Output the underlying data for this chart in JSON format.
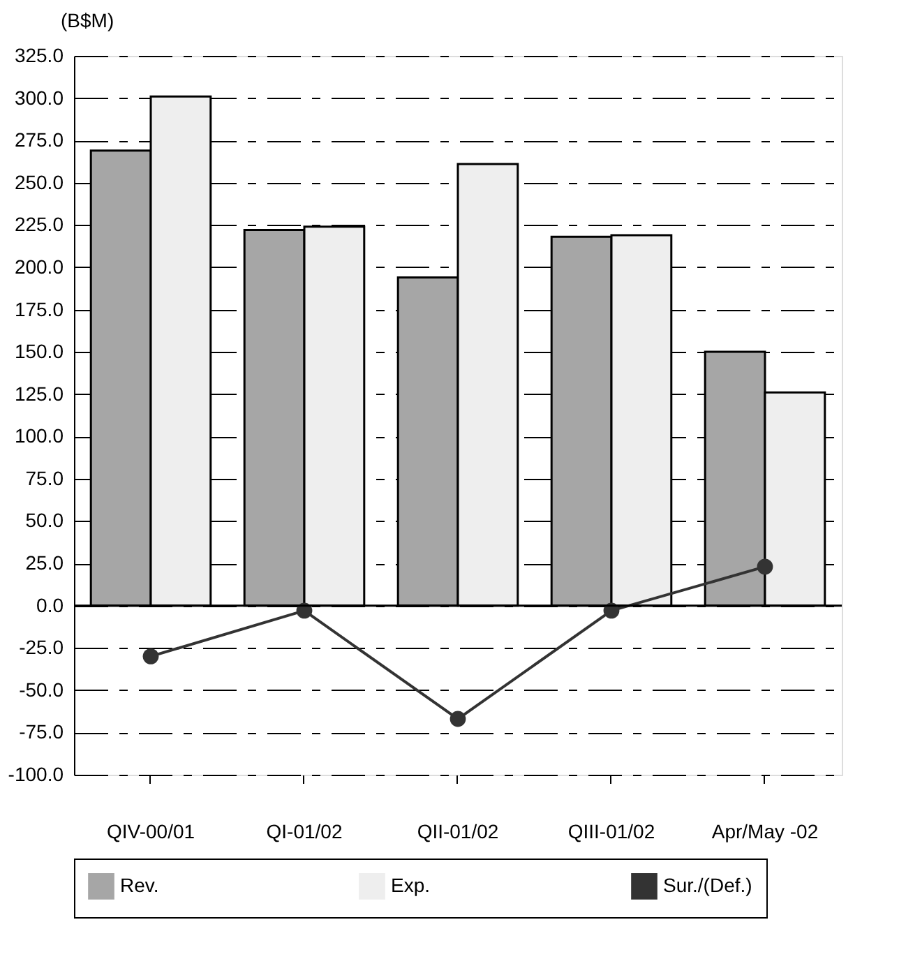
{
  "chart_data": {
    "type": "bar",
    "ylabel": "(B$M)",
    "categories": [
      "QIV-00/01",
      "QI-01/02",
      "QII-01/02",
      "QIII-01/02",
      "Apr/May -02"
    ],
    "series": [
      {
        "name": "Rev.",
        "color": "#a6a6a6",
        "values": [
          269,
          222,
          194,
          218,
          150
        ]
      },
      {
        "name": "Exp.",
        "color": "#eeeeee",
        "values": [
          301,
          224,
          261,
          219,
          126
        ]
      },
      {
        "name": "Sur./(Def.)",
        "type": "line",
        "color": "#333333",
        "marker": "circle",
        "values": [
          -30,
          -3,
          -67,
          -3,
          23
        ]
      }
    ],
    "ylim": [
      -100,
      325
    ],
    "yticks": [
      {
        "value": -100,
        "label": "-100.0"
      },
      {
        "value": -75,
        "label": "-75.0"
      },
      {
        "value": -50,
        "label": "-50.0"
      },
      {
        "value": -25,
        "label": "-25.0"
      },
      {
        "value": 0,
        "label": "0.0"
      },
      {
        "value": 25,
        "label": "25.0"
      },
      {
        "value": 50,
        "label": "50.0"
      },
      {
        "value": 75,
        "label": "75.0"
      },
      {
        "value": 100,
        "label": "100.0"
      },
      {
        "value": 125,
        "label": "125.0"
      },
      {
        "value": 150,
        "label": "150.0"
      },
      {
        "value": 175,
        "label": "175.0"
      },
      {
        "value": 200,
        "label": "200.0"
      },
      {
        "value": 225,
        "label": "225.0"
      },
      {
        "value": 250,
        "label": "250.0"
      },
      {
        "value": 275,
        "label": "275.0"
      },
      {
        "value": 300,
        "label": "300.0"
      },
      {
        "value": 325,
        "label": "325.0"
      }
    ],
    "grid": "y",
    "legend": "bottom",
    "line_style": "solid"
  }
}
